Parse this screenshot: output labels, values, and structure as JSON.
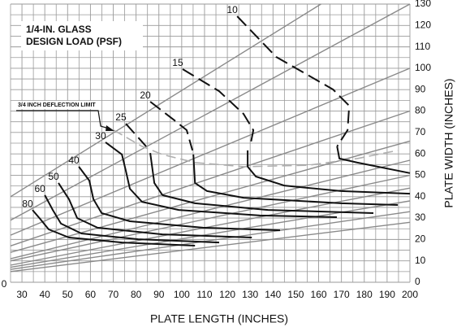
{
  "chart_data": {
    "type": "line",
    "title": [
      "1/4-IN. GLASS",
      "DESIGN LOAD (PSF)"
    ],
    "xlabel": "PLATE LENGTH (INCHES)",
    "ylabel": "PLATE WIDTH (INCHES)",
    "corner_label": "0",
    "xlim": [
      25,
      200
    ],
    "ylim": [
      0,
      130
    ],
    "xticks": [
      30,
      40,
      50,
      60,
      70,
      80,
      90,
      100,
      110,
      120,
      130,
      140,
      150,
      160,
      170,
      180,
      190,
      200
    ],
    "yticks": [
      0,
      10,
      20,
      30,
      40,
      50,
      60,
      70,
      80,
      90,
      100,
      110,
      120,
      130
    ],
    "xminor": [
      25,
      35,
      45,
      55,
      65,
      75,
      85,
      95,
      105,
      115,
      125,
      135,
      145,
      155,
      165,
      175,
      185,
      195
    ],
    "yminor": [
      5,
      15,
      25,
      35,
      45,
      55,
      65,
      75,
      85,
      95,
      105,
      115,
      125
    ],
    "grid": true,
    "grid_color": "#9a9a9a",
    "reference_color": "#8a8a8a",
    "curve_color": "#111111",
    "reference_lines": [
      {
        "x": [
          25,
          161
        ],
        "y": [
          40,
          130
        ]
      },
      {
        "x": [
          25,
          200
        ],
        "y": [
          29,
          130
        ]
      },
      {
        "x": [
          25,
          200
        ],
        "y": [
          22,
          100
        ]
      },
      {
        "x": [
          25,
          200
        ],
        "y": [
          17,
          80
        ]
      },
      {
        "x": [
          25,
          200
        ],
        "y": [
          14,
          66
        ]
      },
      {
        "x": [
          25,
          200
        ],
        "y": [
          11,
          57
        ]
      },
      {
        "x": [
          25,
          200
        ],
        "y": [
          10,
          50
        ]
      },
      {
        "x": [
          25,
          200
        ],
        "y": [
          8,
          44
        ]
      },
      {
        "x": [
          25,
          200
        ],
        "y": [
          7,
          38
        ]
      },
      {
        "x": [
          25,
          200
        ],
        "y": [
          6,
          33
        ]
      },
      {
        "x": [
          25,
          200
        ],
        "y": [
          5,
          28
        ]
      }
    ],
    "deflection_limit": {
      "label": "3/4 INCH DEFLECTION LIMIT",
      "color": "#b0b0b0",
      "x": [
        70.2,
        82.6,
        91.5,
        105.8,
        127.1,
        155.6,
        176.9,
        194.7
      ],
      "y": [
        71.1,
        63.5,
        59.7,
        55.9,
        54.0,
        54.7,
        57.8,
        61.6
      ]
    },
    "series": [
      {
        "name": "10",
        "segments": [
          {
            "style": "dashed",
            "x": [
              124.3,
              141.4,
              166.3,
              173.4,
              172.7,
              168.1
            ],
            "y": [
              124.3,
              105.3,
              90.1,
              82.5,
              71.1,
              63.5
            ]
          },
          {
            "style": "solid",
            "x": [
              168.1,
              169.1,
              177.0,
              200.0
            ],
            "y": [
              63.5,
              57.8,
              55.9,
              51.0
            ]
          }
        ]
      },
      {
        "name": "15",
        "segments": [
          {
            "style": "dashed",
            "x": [
              100.4,
              116.4,
              127.1,
              131.4,
              130.0
            ],
            "y": [
              99.6,
              89.3,
              78.7,
              71.1,
              63.5
            ]
          },
          {
            "style": "solid",
            "x": [
              128.9,
              128.9,
              132.5,
              144.9,
              169.8,
              200.0
            ],
            "y": [
              61.6,
              54.0,
              49.4,
              45.2,
              42.6,
              41.4
            ]
          }
        ]
      },
      {
        "name": "20",
        "segments": [
          {
            "style": "dashed",
            "x": [
              86.2,
              96.9,
              102.2,
              104.7
            ],
            "y": [
              84.4,
              75.6,
              71.1,
              61.6
            ]
          },
          {
            "style": "solid",
            "x": [
              105.1,
              105.8,
              111.1,
              127.1,
              169.8,
              194.7
            ],
            "y": [
              59.7,
              46.4,
              42.6,
              39.5,
              36.9,
              36.1
            ]
          }
        ]
      },
      {
        "name": "25",
        "segments": [
          {
            "style": "dashed",
            "x": [
              75.5,
              84.4
            ],
            "y": [
              74.1,
              63.5
            ]
          },
          {
            "style": "solid",
            "x": [
              86.2,
              88.0,
              91.6,
              105.8,
              137.8,
              184.0
            ],
            "y": [
              60.4,
              46.4,
              40.7,
              36.9,
              33.8,
              32.3
            ]
          }
        ]
      },
      {
        "name": "30",
        "segments": [
          {
            "style": "solid",
            "x": [
              66.6,
              73.8,
              75.5,
              77.3,
              82.6,
              98.7,
              134.2,
              168.0
            ],
            "y": [
              65.4,
              59.7,
              52.1,
              43.7,
              37.6,
              33.8,
              31.2,
              30.4
            ]
          }
        ]
      },
      {
        "name": "40",
        "segments": [
          {
            "style": "solid",
            "x": [
              54.9,
              59.5,
              61.3,
              64.9,
              77.3,
              109.3,
              143.1
            ],
            "y": [
              54.0,
              47.5,
              38.8,
              32.3,
              28.5,
              25.5,
              24.3
            ]
          }
        ]
      },
      {
        "name": "50",
        "segments": [
          {
            "style": "solid",
            "x": [
              46.0,
              50.6,
              54.2,
              63.1,
              91.5,
              130.7
            ],
            "y": [
              46.4,
              38.8,
              30.0,
              25.5,
              22.4,
              20.9
            ]
          }
        ]
      },
      {
        "name": "60",
        "segments": [
          {
            "style": "solid",
            "x": [
              40.0,
              43.5,
              47.1,
              56.0,
              80.9,
              116.4
            ],
            "y": [
              40.7,
              33.8,
              27.4,
              22.8,
              20.1,
              18.6
            ]
          }
        ]
      },
      {
        "name": "80",
        "segments": [
          {
            "style": "solid",
            "x": [
              34.6,
              38.2,
              41.7,
              50.6,
              73.8,
              105.8
            ],
            "y": [
              33.8,
              29.3,
              24.7,
              20.9,
              18.6,
              17.1
            ]
          }
        ]
      }
    ]
  }
}
